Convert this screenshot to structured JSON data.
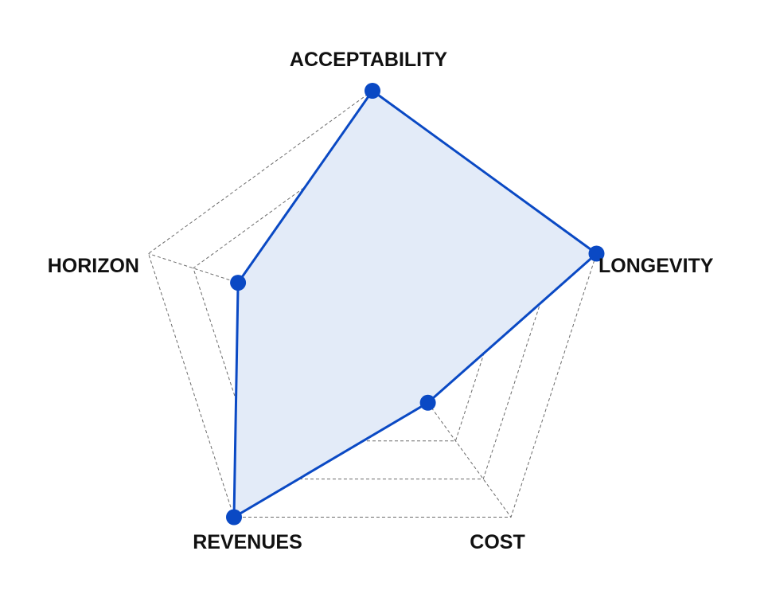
{
  "chart_data": {
    "type": "radar",
    "title": "",
    "axes": [
      "ACCEPTABILITY",
      "LONGEVITY",
      "COST",
      "REVENUES",
      "HORIZON"
    ],
    "series": [
      {
        "name": "",
        "values": [
          5,
          5,
          2,
          5,
          3
        ]
      }
    ],
    "rlim": [
      0,
      5
    ],
    "ring_count": 5,
    "grid": true,
    "legend": "none"
  },
  "colors": {
    "series_line": "#0a49c4",
    "series_fill": "#e3ebf8",
    "grid": "#6b6b6b",
    "label": "#111111"
  }
}
